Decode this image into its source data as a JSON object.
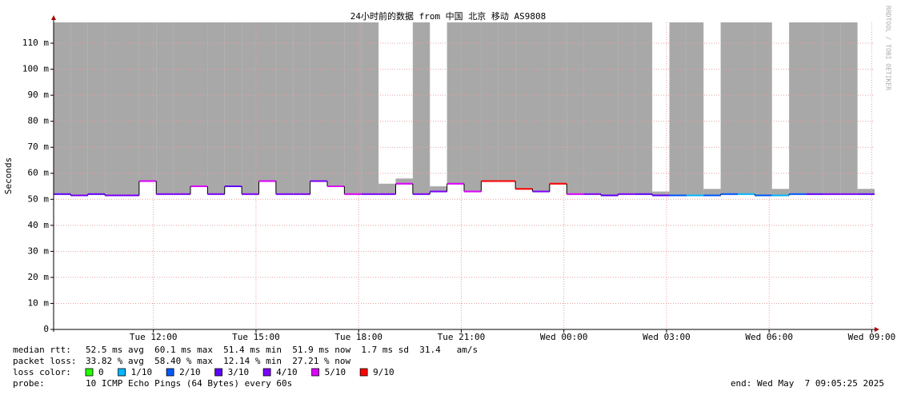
{
  "chart_data": {
    "type": "smokeping",
    "title": "24小时前的数据 from 中国 北京 移动 AS9808",
    "y_label": "Seconds",
    "side_text": "RRDTOOL / TOBI OETIKER",
    "grid": true,
    "xlim": [
      "Tue 09:05",
      "Wed 09:05"
    ],
    "xticks": [
      "Tue 12:00",
      "Tue 15:00",
      "Tue 18:00",
      "Tue 21:00",
      "Wed 00:00",
      "Wed 03:00",
      "Wed 06:00",
      "Wed 09:00"
    ],
    "ylim": [
      0,
      0.118
    ],
    "yticks": [
      0,
      {
        "value": 0.01,
        "label": "10 m"
      },
      {
        "value": 0.02,
        "label": "20 m"
      },
      {
        "value": 0.03,
        "label": "30 m"
      },
      {
        "value": 0.04,
        "label": "40 m"
      },
      {
        "value": 0.05,
        "label": "50 m"
      },
      {
        "value": 0.06,
        "label": "60 m"
      },
      {
        "value": 0.07,
        "label": "70 m"
      },
      {
        "value": 0.08,
        "label": "80 m"
      },
      {
        "value": 0.09,
        "label": "90 m"
      },
      {
        "value": 0.1,
        "label": "100 m"
      },
      {
        "value": 0.11,
        "label": "110 m"
      }
    ],
    "x": [
      "Tue 09:05",
      "Tue 09:35",
      "Tue 10:05",
      "Tue 10:35",
      "Tue 11:05",
      "Tue 11:35",
      "Tue 12:05",
      "Tue 12:35",
      "Tue 13:05",
      "Tue 13:35",
      "Tue 14:05",
      "Tue 14:35",
      "Tue 15:05",
      "Tue 15:35",
      "Tue 16:05",
      "Tue 16:35",
      "Tue 17:05",
      "Tue 17:35",
      "Tue 18:05",
      "Tue 18:35",
      "Tue 19:05",
      "Tue 19:35",
      "Tue 20:05",
      "Tue 20:35",
      "Tue 21:05",
      "Tue 21:35",
      "Tue 22:05",
      "Tue 22:35",
      "Tue 23:05",
      "Tue 23:35",
      "Wed 00:05",
      "Wed 00:35",
      "Wed 01:05",
      "Wed 01:35",
      "Wed 02:05",
      "Wed 02:35",
      "Wed 03:05",
      "Wed 03:35",
      "Wed 04:05",
      "Wed 04:35",
      "Wed 05:05",
      "Wed 05:35",
      "Wed 06:05",
      "Wed 06:35",
      "Wed 07:05",
      "Wed 07:35",
      "Wed 08:05",
      "Wed 08:35"
    ],
    "median": {
      "values": [
        0.052,
        0.0515,
        0.052,
        0.0515,
        0.0515,
        0.057,
        0.052,
        0.052,
        0.055,
        0.052,
        0.055,
        0.052,
        0.057,
        0.052,
        0.052,
        0.057,
        0.055,
        0.052,
        0.052,
        0.052,
        0.056,
        0.052,
        0.053,
        0.056,
        0.053,
        0.057,
        0.057,
        0.054,
        0.053,
        0.056,
        0.052,
        0.052,
        0.0515,
        0.052,
        0.052,
        0.0515,
        0.0515,
        0.0515,
        0.0515,
        0.052,
        0.052,
        0.0515,
        0.0515,
        0.052,
        0.052,
        0.052,
        0.052,
        0.052
      ],
      "colors": [
        "#5e00ff",
        "#7e00ff",
        "#5e00ff",
        "#7e00ff",
        "#7e00ff",
        "#dd00ff",
        "#7e00ff",
        "#7e00ff",
        "#dd00ff",
        "#7e00ff",
        "#5e00ff",
        "#7e00ff",
        "#dd00ff",
        "#7e00ff",
        "#7e00ff",
        "#7e00ff",
        "#dd00ff",
        "#dd00ff",
        "#7e00ff",
        "#7e00ff",
        "#dd00ff",
        "#7e00ff",
        "#7e00ff",
        "#dd00ff",
        "#dd00ff",
        "#ff0000",
        "#ff0000",
        "#ff0000",
        "#7e00ff",
        "#ff0000",
        "#dd00ff",
        "#7e00ff",
        "#5e00ff",
        "#7e00ff",
        "#5e00ff",
        "#5e00ff",
        "#0059ff",
        "#00b8ff",
        "#0059ff",
        "#0059ff",
        "#00b8ff",
        "#0059ff",
        "#00b8ff",
        "#0059ff",
        "#5e00ff",
        "#7e00ff",
        "#7e00ff",
        "#5e00ff"
      ]
    },
    "smoke": {
      "color": "#999999",
      "values": [
        0.2,
        0.2,
        0.2,
        0.2,
        0.2,
        0.2,
        0.2,
        0.2,
        0.2,
        0.2,
        0.2,
        0.2,
        0.2,
        0.2,
        0.2,
        0.2,
        0.2,
        0.2,
        0.2,
        0.056,
        0.058,
        0.2,
        0.055,
        0.2,
        0.2,
        0.2,
        0.2,
        0.2,
        0.2,
        0.2,
        0.2,
        0.2,
        0.2,
        0.2,
        0.2,
        0.053,
        0.2,
        0.2,
        0.054,
        0.2,
        0.2,
        0.2,
        0.054,
        0.2,
        0.2,
        0.2,
        0.2,
        0.054
      ]
    }
  },
  "footer": {
    "stats": [
      {
        "label": "median rtt:",
        "text": "52.5 ms avg  60.1 ms max  51.4 ms min  51.9 ms now  1.7 ms sd  31.4   am/s"
      },
      {
        "label": "packet loss:",
        "text": "33.82 % avg  58.40 % max  12.14 % min  27.21 % now"
      }
    ],
    "loss_legend": {
      "label": "loss color:",
      "items": [
        {
          "label": "0",
          "color": "#26ff00"
        },
        {
          "label": "1/10",
          "color": "#00b8ff"
        },
        {
          "label": "2/10",
          "color": "#0059ff"
        },
        {
          "label": "3/10",
          "color": "#5e00ff"
        },
        {
          "label": "4/10",
          "color": "#7e00ff"
        },
        {
          "label": "5/10",
          "color": "#dd00ff"
        },
        {
          "label": "9/10",
          "color": "#ff0000"
        }
      ]
    },
    "probe": {
      "label": "probe:",
      "text": "10 ICMP Echo Pings (64 Bytes) every 60s"
    },
    "end": "end: Wed May  7 09:05:25 2025"
  }
}
